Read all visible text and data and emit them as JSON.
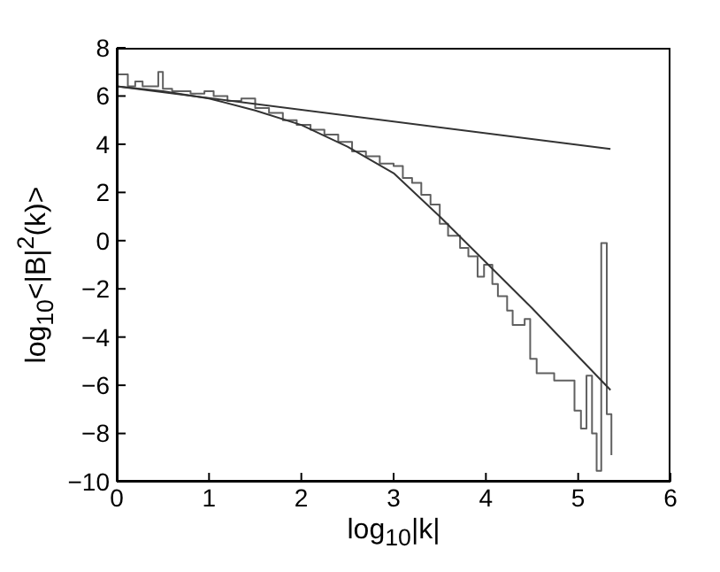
{
  "chart_data": {
    "type": "line",
    "xlabel": "log$_{10}$|k|",
    "ylabel": "log$_{10}$<|B|$^{2}$(k)>",
    "xlim": [
      0,
      6
    ],
    "xticks": [
      0,
      1,
      2,
      3,
      4,
      5,
      6
    ],
    "ylim": [
      -10,
      8
    ],
    "yticks": [
      -10,
      -8,
      -6,
      -4,
      -2,
      0,
      2,
      4,
      6,
      8
    ],
    "grid": false,
    "legend": false,
    "marker": "none",
    "line_style": "solid",
    "series": [
      {
        "type": "step",
        "color": "#606060",
        "x": [
          0,
          0.12,
          0.2,
          0.28,
          0.45,
          0.5,
          0.6,
          0.8,
          0.95,
          1.05,
          1.2,
          1.35,
          1.5,
          1.65,
          1.8,
          1.95,
          2.1,
          2.25,
          2.4,
          2.55,
          2.7,
          2.85,
          3.0,
          3.1,
          3.2,
          3.3,
          3.4,
          3.5,
          3.59,
          3.72,
          3.81,
          3.91,
          3.98,
          4.07,
          4.13,
          4.23,
          4.29,
          4.42,
          4.48,
          4.55,
          4.74,
          4.96,
          5.03,
          5.09,
          5.15,
          5.2,
          5.25,
          5.31,
          5.36
        ],
        "values": [
          6.9,
          6.4,
          6.6,
          6.4,
          7.0,
          6.3,
          6.2,
          6.1,
          6.2,
          6.0,
          5.8,
          5.9,
          5.5,
          5.3,
          5.0,
          4.8,
          4.6,
          4.4,
          4.1,
          3.7,
          3.5,
          3.2,
          3.1,
          2.6,
          2.4,
          1.9,
          1.5,
          0.7,
          0.2,
          -0.3,
          -0.65,
          -1.5,
          -1.0,
          -1.8,
          -2.3,
          -2.9,
          -3.5,
          -3.25,
          -4.9,
          -5.5,
          -5.8,
          -7.05,
          -7.8,
          -5.6,
          -8.0,
          -9.55,
          -0.1,
          -7.2,
          -8.9
        ]
      },
      {
        "color": "#333333",
        "x": [
          0,
          5.35
        ],
        "values": [
          6.4,
          3.8
        ]
      },
      {
        "color": "#333333",
        "x": [
          0,
          0.5,
          1,
          1.5,
          2,
          2.5,
          3,
          3.5,
          4,
          4.5,
          5,
          5.35
        ],
        "values": [
          6.4,
          6.2,
          5.9,
          5.4,
          4.8,
          3.9,
          2.8,
          1.0,
          -0.9,
          -2.8,
          -4.8,
          -6.2
        ]
      }
    ]
  }
}
